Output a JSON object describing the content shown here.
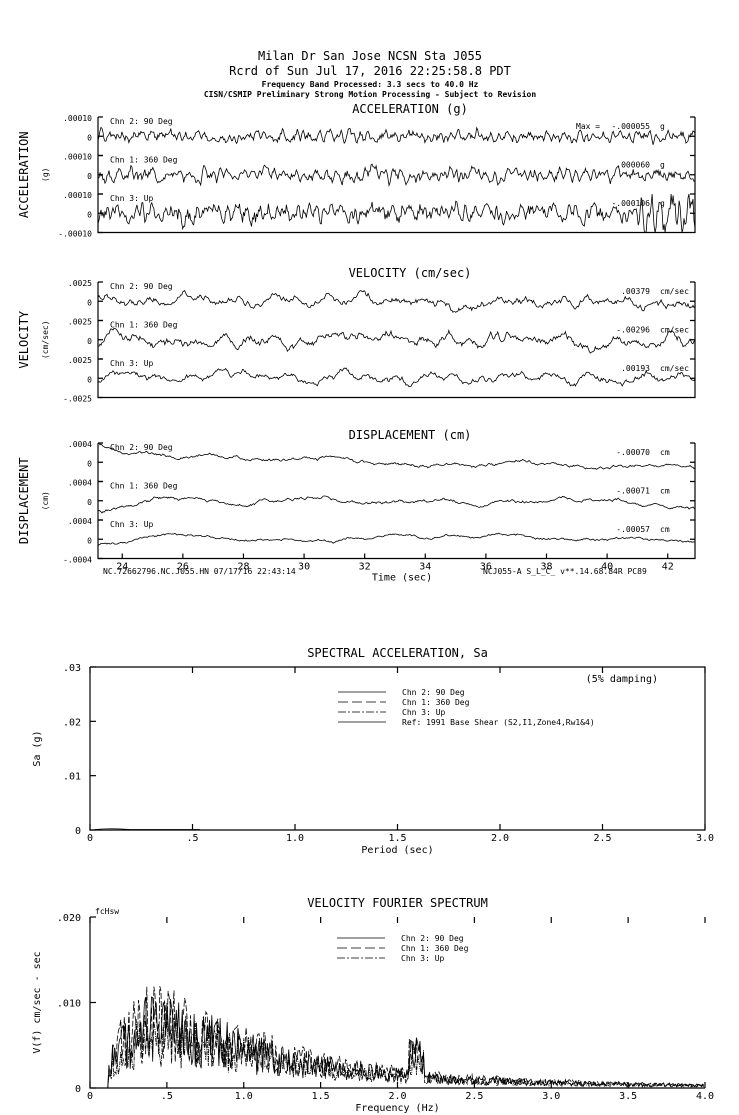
{
  "header": {
    "line1": "Milan Dr San Jose    NCSN Sta J055",
    "line2": "Rcrd of Sun Jul 17, 2016 22:25:58.8 PDT",
    "line3": "Frequency Band Processed: 3.3 secs to 40.0 Hz",
    "line4": "CISN/CSMIP Preliminary Strong Motion Processing - Subject to Revision"
  },
  "footer": {
    "left": "NC.72662796.NC.J055.HN 07/17/16 22:43:14",
    "right": "NCJ055-A  S_L_C_  v**.14.68.84R PC89"
  },
  "chart_data": [
    {
      "type": "line",
      "title": "ACCELERATION (g)",
      "ylabel": "ACCELERATION",
      "yunit": "(g)",
      "max_prefix": "Max =",
      "unit": "g",
      "ticks": [
        ".00010",
        "0",
        "-.00010"
      ],
      "ylim": [
        -0.0001,
        0.0001
      ],
      "series": [
        {
          "name": "Chn 2: 90 Deg",
          "max": "-.000055",
          "amp": 0.3,
          "seed": 11
        },
        {
          "name": "Chn 1: 360 Deg",
          "max": ".000060",
          "amp": 0.35,
          "seed": 23
        },
        {
          "name": "Chn 3: Up",
          "max": "-.000106",
          "amp": 0.5,
          "seed": 37
        }
      ]
    },
    {
      "type": "line",
      "title": "VELOCITY (cm/sec)",
      "ylabel": "VELOCITY",
      "yunit": "(cm/sec)",
      "unit": "cm/sec",
      "ticks": [
        ".0025",
        "0",
        "-.0025"
      ],
      "ylim": [
        -0.0025,
        0.0025
      ],
      "series": [
        {
          "name": "Chn 2: 90 Deg",
          "max": ".00379",
          "amp": 0.35,
          "seed": 5
        },
        {
          "name": "Chn 1: 360 Deg",
          "max": "-.00296",
          "amp": 0.4,
          "seed": 8
        },
        {
          "name": "Chn 3: Up",
          "max": ".00193",
          "amp": 0.3,
          "seed": 13
        }
      ]
    },
    {
      "type": "line",
      "title": "DISPLACEMENT (cm)",
      "ylabel": "DISPLACEMENT",
      "yunit": "(cm)",
      "unit": "cm",
      "ticks": [
        ".0004",
        "0",
        "-.0004"
      ],
      "ylim": [
        -0.0004,
        0.0004
      ],
      "xlabel": "Time (sec)",
      "xlim": [
        23.2,
        42.9
      ],
      "xticks": [
        "24",
        "26",
        "28",
        "30",
        "32",
        "34",
        "36",
        "38",
        "40",
        "42"
      ],
      "series": [
        {
          "name": "Chn 2: 90 Deg",
          "max": "-.00070",
          "amp": 0.8,
          "seed": 3
        },
        {
          "name": "Chn 1: 360 Deg",
          "max": "-.00071",
          "amp": 0.8,
          "seed": 17
        },
        {
          "name": "Chn 3: Up",
          "max": "-.00057",
          "amp": 0.6,
          "seed": 29
        }
      ]
    },
    {
      "type": "line",
      "title": "SPECTRAL ACCELERATION, Sa",
      "xlabel": "Period (sec)",
      "ylabel": "Sa (g)",
      "xlim": [
        0,
        3.0
      ],
      "ylim": [
        0,
        0.03
      ],
      "xticks": [
        "0",
        ".5",
        "1.0",
        "1.5",
        "2.0",
        "2.5",
        "3.0"
      ],
      "yticks": [
        "0",
        ".01",
        ".02",
        ".03"
      ],
      "note": "(5% damping)",
      "legend": [
        "Chn 2: 90 Deg",
        "Chn 1: 360 Deg",
        "Chn 3: Up",
        "Ref: 1991 Base Shear (S2,I1,Zone4,Rw1&4)"
      ],
      "legend_placement": "top-right"
    },
    {
      "type": "line",
      "title": "VELOCITY FOURIER SPECTRUM",
      "xlabel": "Frequency (Hz)",
      "ylabel": "V(f)  cm/sec - sec",
      "xlim": [
        0,
        4.0
      ],
      "ylim": [
        0,
        0.02
      ],
      "xticks": [
        "0",
        ".5",
        "1.0",
        "1.5",
        "2.0",
        "2.5",
        "3.0",
        "3.5",
        "4.0"
      ],
      "yticks": [
        "0",
        ".010",
        ".020"
      ],
      "corner": "fcHsw",
      "legend": [
        "Chn 2: 90 Deg",
        "Chn 1: 360 Deg",
        "Chn 3: Up"
      ],
      "legend_placement": "top-right",
      "peak": 0.011
    }
  ]
}
